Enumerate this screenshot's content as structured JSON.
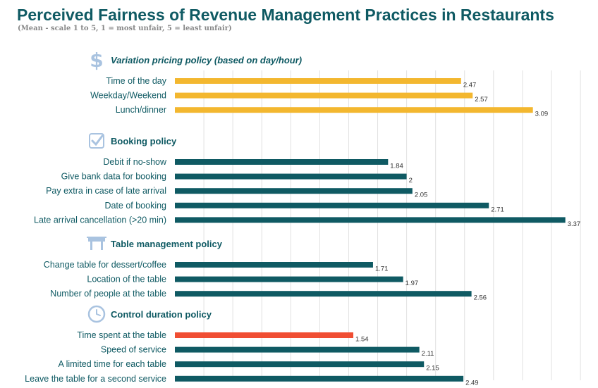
{
  "chart_data": {
    "type": "bar",
    "orientation": "horizontal",
    "title": "Perceived Fairness of Revenue Management Practices in Restaurants",
    "subtitle": "(Mean - scale 1 to 5, 1 = most unfair, 5 = least unfair)",
    "xlim": [
      0,
      3.5
    ],
    "grid": true,
    "sections": [
      {
        "title": "Variation pricing policy (based on day/hour)",
        "icon": "dollar-icon",
        "color": "#f3b72f",
        "items": [
          {
            "label": "Time of the day",
            "value": 2.47,
            "value_label": "2.47"
          },
          {
            "label": "Weekday/Weekend",
            "value": 2.57,
            "value_label": "2.57"
          },
          {
            "label": "Lunch/dinner",
            "value": 3.09,
            "value_label": "3.09"
          }
        ]
      },
      {
        "title": "Booking policy",
        "icon": "checkbox-icon",
        "color": "#0f5a63",
        "items": [
          {
            "label": "Debit if no-show",
            "value": 1.84,
            "value_label": "1.84"
          },
          {
            "label": "Give bank data for booking",
            "value": 2,
            "value_label": "2"
          },
          {
            "label": "Pay extra in case of late arrival",
            "value": 2.05,
            "value_label": "2.05"
          },
          {
            "label": "Date of booking",
            "value": 2.71,
            "value_label": "2.71"
          },
          {
            "label": "Late arrival cancellation (>20 min)",
            "value": 3.37,
            "value_label": "3.37"
          }
        ]
      },
      {
        "title": "Table management policy",
        "icon": "table-icon",
        "color": "#0f5a63",
        "items": [
          {
            "label": "Change table for dessert/coffee",
            "value": 1.71,
            "value_label": "1.71"
          },
          {
            "label": "Location of the table",
            "value": 1.97,
            "value_label": "1.97"
          },
          {
            "label": "Number of people at the table",
            "value": 2.56,
            "value_label": "2.56"
          }
        ]
      },
      {
        "title": "Control duration policy",
        "icon": "clock-icon",
        "color": "#0f5a63",
        "items": [
          {
            "label": "Time spent at the table",
            "value": 1.54,
            "value_label": "1.54",
            "color": "#f04e33"
          },
          {
            "label": "Speed of service",
            "value": 2.11,
            "value_label": "2.11"
          },
          {
            "label": "A limited time for each table",
            "value": 2.15,
            "value_label": "2.15"
          },
          {
            "label": "Leave the table for a second service",
            "value": 2.49,
            "value_label": "2.49"
          }
        ]
      }
    ]
  }
}
